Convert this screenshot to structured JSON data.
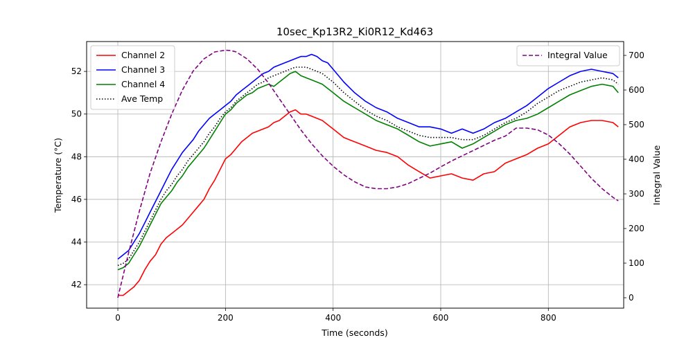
{
  "chart_data": {
    "type": "line",
    "title": "10sec_Kp13R2_Ki0R12_Kd463",
    "xlabel": "Time (seconds)",
    "ylabel": "Temperature (°C)",
    "y2label": "Integral Value",
    "xlim": [
      -58,
      940
    ],
    "ylim": [
      40.9,
      53.4
    ],
    "y2lim": [
      -30,
      740
    ],
    "xticks": [
      0,
      200,
      400,
      600,
      800
    ],
    "yticks": [
      42,
      44,
      46,
      48,
      50,
      52
    ],
    "y2ticks": [
      0,
      100,
      200,
      300,
      400,
      500,
      600,
      700
    ],
    "grid": true,
    "legend_left": "top-left",
    "legend_right": "top-right",
    "colors": {
      "channel2": "#ff0000",
      "channel3": "#0000ff",
      "channel4": "#008000",
      "ave": "#000000",
      "integral": "#800080"
    },
    "series": [
      {
        "name": "Channel 2",
        "axis": "left",
        "color": "#ff0000",
        "style": "solid",
        "x": [
          0,
          10,
          20,
          30,
          40,
          50,
          60,
          70,
          80,
          90,
          100,
          110,
          120,
          130,
          140,
          150,
          160,
          170,
          180,
          190,
          200,
          210,
          220,
          230,
          240,
          250,
          260,
          270,
          280,
          290,
          300,
          310,
          320,
          330,
          340,
          350,
          360,
          370,
          380,
          390,
          400,
          420,
          440,
          460,
          480,
          500,
          520,
          540,
          560,
          580,
          600,
          620,
          640,
          660,
          680,
          700,
          720,
          740,
          760,
          780,
          800,
          820,
          840,
          860,
          880,
          900,
          920,
          930
        ],
        "y": [
          41.5,
          41.5,
          41.7,
          41.9,
          42.2,
          42.7,
          43.1,
          43.4,
          43.9,
          44.2,
          44.4,
          44.6,
          44.8,
          45.1,
          45.4,
          45.7,
          46.0,
          46.5,
          46.9,
          47.4,
          47.9,
          48.1,
          48.4,
          48.7,
          48.9,
          49.1,
          49.2,
          49.3,
          49.4,
          49.6,
          49.7,
          49.9,
          50.1,
          50.2,
          50.0,
          50.0,
          49.9,
          49.8,
          49.7,
          49.5,
          49.3,
          48.9,
          48.7,
          48.5,
          48.3,
          48.2,
          48.0,
          47.6,
          47.3,
          47.0,
          47.1,
          47.2,
          47.0,
          46.9,
          47.2,
          47.3,
          47.7,
          47.9,
          48.1,
          48.4,
          48.6,
          49.0,
          49.4,
          49.6,
          49.7,
          49.7,
          49.6,
          49.4
        ]
      },
      {
        "name": "Channel 3",
        "axis": "left",
        "color": "#0000ff",
        "style": "solid",
        "x": [
          0,
          10,
          20,
          30,
          40,
          50,
          60,
          70,
          80,
          90,
          100,
          110,
          120,
          130,
          140,
          150,
          160,
          170,
          180,
          190,
          200,
          210,
          220,
          230,
          240,
          250,
          260,
          270,
          280,
          290,
          300,
          310,
          320,
          330,
          340,
          350,
          360,
          370,
          380,
          390,
          400,
          420,
          440,
          460,
          480,
          500,
          520,
          540,
          560,
          580,
          600,
          620,
          640,
          660,
          680,
          700,
          720,
          740,
          760,
          780,
          800,
          820,
          840,
          860,
          880,
          900,
          920,
          930
        ],
        "y": [
          43.2,
          43.4,
          43.6,
          44.0,
          44.4,
          44.9,
          45.4,
          45.9,
          46.4,
          46.9,
          47.4,
          47.8,
          48.2,
          48.5,
          48.8,
          49.2,
          49.5,
          49.8,
          50.0,
          50.2,
          50.4,
          50.6,
          50.9,
          51.1,
          51.3,
          51.5,
          51.7,
          51.9,
          52.0,
          52.2,
          52.3,
          52.4,
          52.5,
          52.6,
          52.7,
          52.7,
          52.8,
          52.7,
          52.5,
          52.4,
          52.1,
          51.5,
          51.0,
          50.6,
          50.3,
          50.1,
          49.8,
          49.6,
          49.4,
          49.4,
          49.3,
          49.1,
          49.3,
          49.1,
          49.3,
          49.6,
          49.8,
          50.1,
          50.4,
          50.8,
          51.2,
          51.5,
          51.8,
          52.0,
          52.1,
          52.0,
          51.9,
          51.7
        ]
      },
      {
        "name": "Channel 4",
        "axis": "left",
        "color": "#008000",
        "style": "solid",
        "x": [
          0,
          10,
          20,
          30,
          40,
          50,
          60,
          70,
          80,
          90,
          100,
          110,
          120,
          130,
          140,
          150,
          160,
          170,
          180,
          190,
          200,
          210,
          220,
          230,
          240,
          250,
          260,
          270,
          280,
          290,
          300,
          310,
          320,
          330,
          340,
          350,
          360,
          370,
          380,
          390,
          400,
          420,
          440,
          460,
          480,
          500,
          520,
          540,
          560,
          580,
          600,
          620,
          640,
          660,
          680,
          700,
          720,
          740,
          760,
          780,
          800,
          820,
          840,
          860,
          880,
          900,
          920,
          930
        ],
        "y": [
          42.7,
          42.8,
          43.0,
          43.4,
          43.8,
          44.3,
          44.8,
          45.3,
          45.8,
          46.1,
          46.4,
          46.8,
          47.1,
          47.5,
          47.8,
          48.1,
          48.4,
          48.8,
          49.2,
          49.6,
          50.0,
          50.2,
          50.5,
          50.7,
          50.9,
          51.0,
          51.2,
          51.3,
          51.4,
          51.3,
          51.5,
          51.7,
          51.9,
          52.0,
          51.8,
          51.7,
          51.6,
          51.5,
          51.4,
          51.2,
          51.0,
          50.6,
          50.3,
          50.0,
          49.7,
          49.5,
          49.3,
          49.0,
          48.7,
          48.5,
          48.6,
          48.7,
          48.4,
          48.6,
          48.9,
          49.2,
          49.5,
          49.7,
          49.8,
          50.0,
          50.3,
          50.6,
          50.9,
          51.1,
          51.3,
          51.4,
          51.3,
          51.0
        ]
      },
      {
        "name": "Ave Temp",
        "axis": "left",
        "color": "#000000",
        "style": "dotted",
        "x": [
          0,
          10,
          20,
          30,
          40,
          50,
          60,
          70,
          80,
          90,
          100,
          110,
          120,
          130,
          140,
          150,
          160,
          170,
          180,
          190,
          200,
          210,
          220,
          230,
          240,
          250,
          260,
          270,
          280,
          290,
          300,
          310,
          320,
          330,
          340,
          350,
          360,
          370,
          380,
          390,
          400,
          420,
          440,
          460,
          480,
          500,
          520,
          540,
          560,
          580,
          600,
          620,
          640,
          660,
          680,
          700,
          720,
          740,
          760,
          780,
          800,
          820,
          840,
          860,
          880,
          900,
          920,
          930
        ],
        "y": [
          42.9,
          43.0,
          43.2,
          43.6,
          44.0,
          44.5,
          45.0,
          45.5,
          46.0,
          46.4,
          46.7,
          47.1,
          47.4,
          47.8,
          48.1,
          48.4,
          48.7,
          49.1,
          49.4,
          49.8,
          50.1,
          50.3,
          50.6,
          50.8,
          51.0,
          51.2,
          51.4,
          51.5,
          51.7,
          51.8,
          51.9,
          52.0,
          52.1,
          52.2,
          52.2,
          52.2,
          52.1,
          52.0,
          51.9,
          51.7,
          51.5,
          51.0,
          50.6,
          50.2,
          49.9,
          49.7,
          49.4,
          49.2,
          49.0,
          48.9,
          48.9,
          48.9,
          48.8,
          48.8,
          49.0,
          49.3,
          49.6,
          49.8,
          50.1,
          50.5,
          50.8,
          51.1,
          51.3,
          51.5,
          51.6,
          51.7,
          51.6,
          51.4
        ]
      },
      {
        "name": "Integral Value",
        "axis": "right",
        "color": "#800080",
        "style": "dashed",
        "x": [
          0,
          20,
          40,
          60,
          80,
          100,
          120,
          140,
          160,
          180,
          200,
          210,
          220,
          240,
          260,
          280,
          300,
          320,
          340,
          360,
          380,
          400,
          420,
          440,
          460,
          480,
          500,
          520,
          540,
          560,
          580,
          600,
          620,
          640,
          660,
          680,
          700,
          720,
          740,
          760,
          780,
          800,
          820,
          840,
          860,
          880,
          900,
          920,
          930
        ],
        "y": [
          0,
          130,
          250,
          360,
          450,
          530,
          600,
          655,
          690,
          710,
          715,
          714,
          710,
          690,
          660,
          620,
          575,
          530,
          485,
          445,
          410,
          380,
          355,
          335,
          320,
          315,
          315,
          320,
          330,
          345,
          360,
          378,
          395,
          410,
          425,
          440,
          455,
          467,
          490,
          490,
          485,
          470,
          445,
          415,
          380,
          345,
          315,
          290,
          280
        ]
      }
    ]
  }
}
